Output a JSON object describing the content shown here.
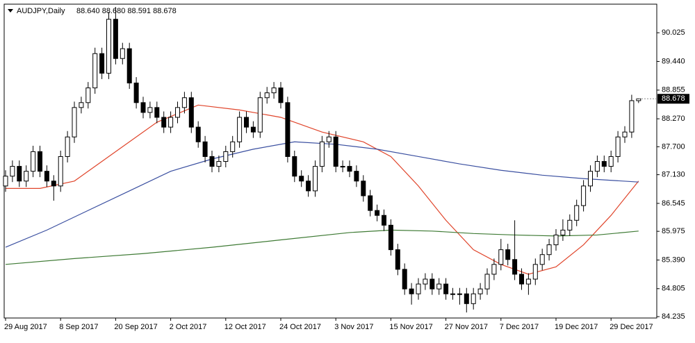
{
  "chart_data": {
    "type": "candlestick",
    "header": {
      "symbol": "AUDJPY,Daily",
      "ohlc": "88.640 88.680 88.591 88.678"
    },
    "categories": [
      "29 Aug 2017",
      null,
      null,
      null,
      null,
      null,
      null,
      null,
      "8 Sep 2017",
      null,
      null,
      null,
      null,
      null,
      null,
      null,
      "20 Sep 2017",
      null,
      null,
      null,
      null,
      null,
      null,
      null,
      "2 Oct 2017",
      null,
      null,
      null,
      null,
      null,
      null,
      null,
      "12 Oct 2017",
      null,
      null,
      null,
      null,
      null,
      null,
      null,
      "24 Oct 2017",
      null,
      null,
      null,
      null,
      null,
      null,
      null,
      "3 Nov 2017",
      null,
      null,
      null,
      null,
      null,
      null,
      null,
      "15 Nov 2017",
      null,
      null,
      null,
      null,
      null,
      null,
      null,
      "27 Nov 2017",
      null,
      null,
      null,
      null,
      null,
      null,
      null,
      "7 Dec 2017",
      null,
      null,
      null,
      null,
      null,
      null,
      null,
      "19 Dec 2017",
      null,
      null,
      null,
      null,
      null,
      null,
      null,
      "29 Dec 2017",
      null,
      null,
      null,
      null
    ],
    "open": [
      86.9,
      87.1,
      87.3,
      87.0,
      87.2,
      87.6,
      87.2,
      87.0,
      86.9,
      87.5,
      87.9,
      88.5,
      88.6,
      88.9,
      89.6,
      89.2,
      90.3,
      89.5,
      89.7,
      89.0,
      88.6,
      88.4,
      88.5,
      88.3,
      88.1,
      88.3,
      88.5,
      88.7,
      88.1,
      87.8,
      87.5,
      87.3,
      87.4,
      87.6,
      87.8,
      88.3,
      88.1,
      88.0,
      88.7,
      88.8,
      88.9,
      88.6,
      87.5,
      87.1,
      87.0,
      86.8,
      87.3,
      87.8,
      87.9,
      87.3,
      87.3,
      87.2,
      87.0,
      86.7,
      86.4,
      86.3,
      86.1,
      85.6,
      85.2,
      84.8,
      84.7,
      84.9,
      85.0,
      84.8,
      84.9,
      84.7,
      84.7,
      84.7,
      84.5,
      84.7,
      84.8,
      85.1,
      85.3,
      85.6,
      85.4,
      85.1,
      84.9,
      85.0,
      85.3,
      85.5,
      85.7,
      85.9,
      86.0,
      86.2,
      86.5,
      86.9,
      87.2,
      87.4,
      87.3,
      87.5,
      87.9,
      88.0,
      88.64
    ],
    "high": [
      87.22,
      87.42,
      87.42,
      87.32,
      87.72,
      87.72,
      87.32,
      87.12,
      87.62,
      88.02,
      88.62,
      88.72,
      89.02,
      89.72,
      89.72,
      90.45,
      90.55,
      89.82,
      89.82,
      89.12,
      88.72,
      88.62,
      88.62,
      88.42,
      88.42,
      88.62,
      88.82,
      88.82,
      88.22,
      87.92,
      87.62,
      87.52,
      87.72,
      87.92,
      88.42,
      88.42,
      88.22,
      88.82,
      88.92,
      89.02,
      89.02,
      88.72,
      87.62,
      87.22,
      87.12,
      87.42,
      87.92,
      88.02,
      88.02,
      87.42,
      87.42,
      87.32,
      87.12,
      86.82,
      86.52,
      86.42,
      86.22,
      85.72,
      85.32,
      84.92,
      85.02,
      85.12,
      85.12,
      85.02,
      85.02,
      84.82,
      84.82,
      84.82,
      84.82,
      84.92,
      85.22,
      85.42,
      85.82,
      85.72,
      86.2,
      85.22,
      85.12,
      85.42,
      85.62,
      85.82,
      86.02,
      86.22,
      86.32,
      86.62,
      87.02,
      87.32,
      87.52,
      87.52,
      87.62,
      88.02,
      88.12,
      88.76,
      88.68
    ],
    "low": [
      86.78,
      86.98,
      86.88,
      86.88,
      87.08,
      87.08,
      86.88,
      86.6,
      86.78,
      87.38,
      87.78,
      88.38,
      88.48,
      88.78,
      89.08,
      89.08,
      89.38,
      89.38,
      88.88,
      88.48,
      88.28,
      88.28,
      88.18,
      87.98,
      87.98,
      88.18,
      88.38,
      87.98,
      87.68,
      87.38,
      87.18,
      87.18,
      87.28,
      87.48,
      87.68,
      87.98,
      87.88,
      87.88,
      88.58,
      88.68,
      88.48,
      87.38,
      86.98,
      86.88,
      86.68,
      86.68,
      87.18,
      87.68,
      87.18,
      87.18,
      87.08,
      86.88,
      86.58,
      86.28,
      86.18,
      85.98,
      85.48,
      85.08,
      84.68,
      84.48,
      84.58,
      84.78,
      84.68,
      84.68,
      84.58,
      84.58,
      84.48,
      84.32,
      84.38,
      84.58,
      84.68,
      84.98,
      85.18,
      85.28,
      84.98,
      84.78,
      84.68,
      84.88,
      85.18,
      85.38,
      85.58,
      85.78,
      85.88,
      86.08,
      86.38,
      86.78,
      87.08,
      87.18,
      87.18,
      87.38,
      87.78,
      87.88,
      88.591
    ],
    "close": [
      87.1,
      87.3,
      87.0,
      87.2,
      87.6,
      87.2,
      87.0,
      86.9,
      87.5,
      87.9,
      88.5,
      88.6,
      88.9,
      89.6,
      89.2,
      90.3,
      89.5,
      89.7,
      89.0,
      88.6,
      88.4,
      88.5,
      88.3,
      88.1,
      88.3,
      88.5,
      88.7,
      88.1,
      87.8,
      87.5,
      87.3,
      87.4,
      87.6,
      87.8,
      88.3,
      88.1,
      88.0,
      88.7,
      88.8,
      88.9,
      88.6,
      87.5,
      87.1,
      87.0,
      86.8,
      87.3,
      87.8,
      87.9,
      87.3,
      87.3,
      87.2,
      87.0,
      86.7,
      86.4,
      86.3,
      86.1,
      85.6,
      85.2,
      84.8,
      84.7,
      84.9,
      85.0,
      84.8,
      84.9,
      84.7,
      84.7,
      84.7,
      84.5,
      84.7,
      84.8,
      85.1,
      85.3,
      85.6,
      85.4,
      85.1,
      84.9,
      85.0,
      85.3,
      85.5,
      85.7,
      85.9,
      86.0,
      86.2,
      86.5,
      86.9,
      87.2,
      87.4,
      87.3,
      87.5,
      87.9,
      88.0,
      88.64,
      88.678
    ],
    "up_color": "#ffffff",
    "down_color": "#000000",
    "series": [
      {
        "color": "#e0442a",
        "x": [
          0,
          5,
          10,
          16,
          22,
          28,
          34,
          40,
          46,
          52,
          56,
          60,
          64,
          68,
          72,
          76,
          80,
          84,
          88,
          92
        ],
        "values": [
          86.85,
          86.85,
          87.0,
          87.6,
          88.2,
          88.55,
          88.45,
          88.3,
          88.0,
          87.8,
          87.5,
          86.9,
          86.2,
          85.6,
          85.3,
          85.1,
          85.25,
          85.7,
          86.3,
          87.0
        ]
      },
      {
        "color": "#3a4fa0",
        "x": [
          0,
          6,
          12,
          18,
          24,
          30,
          36,
          42,
          48,
          54,
          60,
          66,
          72,
          78,
          84,
          92
        ],
        "values": [
          85.65,
          86.0,
          86.4,
          86.8,
          87.2,
          87.45,
          87.65,
          87.8,
          87.75,
          87.65,
          87.5,
          87.35,
          87.22,
          87.12,
          87.05,
          86.98
        ]
      },
      {
        "color": "#3e7a34",
        "x": [
          0,
          10,
          20,
          30,
          40,
          50,
          56,
          62,
          68,
          74,
          80,
          86,
          92
        ],
        "values": [
          85.3,
          85.42,
          85.52,
          85.65,
          85.8,
          85.95,
          86.0,
          85.98,
          85.93,
          85.9,
          85.88,
          85.9,
          85.98
        ]
      }
    ],
    "ylim": [
      84.207,
      90.608
    ],
    "yticks": [
      90.025,
      {
        "value": 89.44,
        "label": "89.440"
      },
      88.855,
      {
        "value": 88.27,
        "label": "88.270"
      },
      {
        "value": 87.7,
        "label": "87.700"
      },
      {
        "value": 87.13,
        "label": "87.130"
      },
      86.545,
      85.975,
      {
        "value": 85.39,
        "label": "85.390"
      },
      84.805,
      84.235
    ],
    "price_label": {
      "value": 88.678,
      "label": "88.678"
    }
  }
}
